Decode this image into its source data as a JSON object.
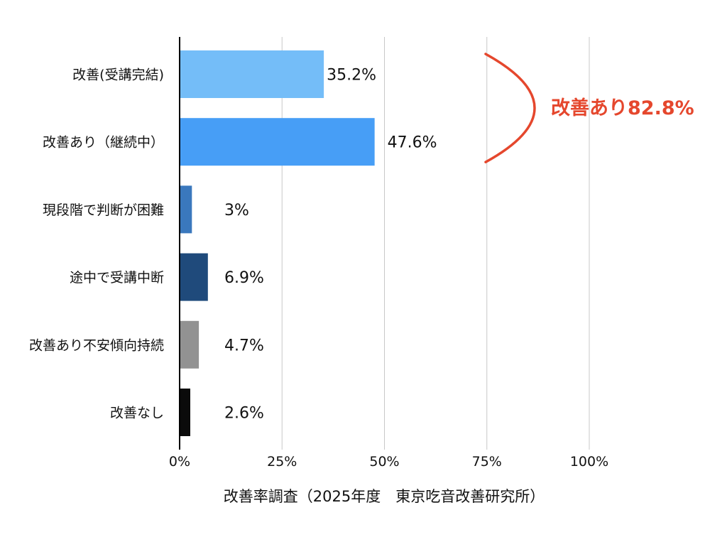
{
  "chart_data": {
    "type": "bar",
    "orientation": "horizontal",
    "categories": [
      "改善(受講完結)",
      "改善あり（継続中）",
      "現段階で判断が困難",
      "途中で受講中断",
      "改善あり不安傾向持続",
      "改善なし"
    ],
    "values": [
      35.2,
      47.6,
      3,
      6.9,
      4.7,
      2.6
    ],
    "value_labels": [
      "35.2%",
      "47.6%",
      "3%",
      "6.9%",
      "4.7%",
      "2.6%"
    ],
    "colors": [
      "#74bdf8",
      "#479ef6",
      "#3a78bd",
      "#1f4a7b",
      "#929292",
      "#0b0b0b"
    ],
    "xlim": [
      0,
      100
    ],
    "xticks": [
      0,
      25,
      50,
      75,
      100
    ],
    "xtick_labels": [
      "0%",
      "25%",
      "50%",
      "75%",
      "100%"
    ],
    "xlabel": "改善率調査（2025年度　東京吃音改善研究所）",
    "grid": "vertical",
    "annotation": {
      "text": "改善あり82.8%",
      "color": "#e5472d",
      "brackets_categories": [
        "改善(受講完結)",
        "改善あり（継続中）"
      ]
    }
  }
}
